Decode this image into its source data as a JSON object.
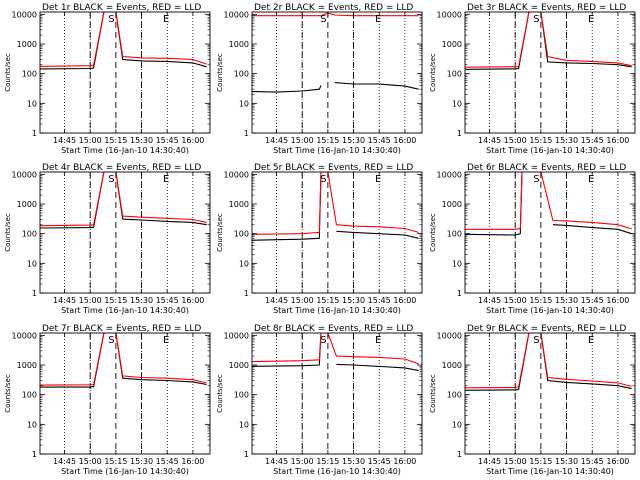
{
  "colors": {
    "events": "#000000",
    "lld": "#ff0000",
    "axes": "#000000"
  },
  "shared_axes": {
    "ylabel": "Counts/sec",
    "xlabel": "Start Time (16-Jan-10 14:30:40)",
    "x_tick_labels": [
      "14:45",
      "15:00",
      "15:15",
      "15:30",
      "15:45",
      "16:00"
    ],
    "y_tick_labels": [
      "1",
      "10",
      "100",
      "1000",
      "10000"
    ],
    "y_scale": "log",
    "xlim": [
      "14:30:40",
      "16:10:00"
    ],
    "ylim": [
      1,
      12000
    ],
    "dotted_lines_at": [
      "14:45",
      "15:00",
      "15:30",
      "15:45",
      "16:00"
    ],
    "dashed_lines_at": [
      "15:00",
      "15:15",
      "15:30"
    ],
    "markers": [
      {
        "label": "S",
        "at": "15:13"
      },
      {
        "label": "E",
        "at": "15:45"
      }
    ]
  },
  "chart_data": [
    {
      "type": "line",
      "title": "Det 1r BLACK = Events, RED = LLD",
      "x": [
        "14:30",
        "15:00",
        "15:02",
        "15:08",
        "15:15",
        "15:19",
        "15:30",
        "15:45",
        "16:00",
        "16:08"
      ],
      "series": [
        {
          "name": "BLACK = Events",
          "values": [
            145,
            150,
            155,
            12000,
            12000,
            300,
            270,
            260,
            230,
            170
          ]
        },
        {
          "name": "RED = LLD",
          "values": [
            175,
            185,
            195,
            12000,
            12000,
            380,
            340,
            330,
            300,
            210
          ]
        }
      ]
    },
    {
      "type": "line",
      "title": "Det 2r BLACK = Events, RED = LLD",
      "x": [
        "14:30",
        "14:45",
        "15:00",
        "15:10",
        "15:11",
        "15:15",
        "15:19",
        "15:30",
        "15:45",
        "16:00",
        "16:08"
      ],
      "series": [
        {
          "name": "BLACK = Events",
          "values": [
            25,
            24,
            26,
            30,
            40,
            null,
            50,
            45,
            45,
            38,
            30
          ]
        },
        {
          "name": "RED = LLD",
          "values": [
            9000,
            9000,
            9000,
            9000,
            9000,
            11000,
            9500,
            9000,
            9000,
            9000,
            9000
          ]
        }
      ]
    },
    {
      "type": "line",
      "title": "Det 3r BLACK = Events, RED = LLD",
      "x": [
        "14:30",
        "15:00",
        "15:02",
        "15:08",
        "15:15",
        "15:19",
        "15:30",
        "15:45",
        "16:00",
        "16:08"
      ],
      "series": [
        {
          "name": "BLACK = Events",
          "values": [
            140,
            145,
            150,
            12000,
            12000,
            250,
            230,
            220,
            200,
            170
          ]
        },
        {
          "name": "RED = LLD",
          "values": [
            165,
            170,
            175,
            12000,
            12000,
            380,
            280,
            260,
            230,
            185
          ]
        }
      ]
    },
    {
      "type": "line",
      "title": "Det 4r BLACK = Events, RED = LLD",
      "x": [
        "14:30",
        "15:00",
        "15:02",
        "15:08",
        "15:15",
        "15:19",
        "15:30",
        "15:45",
        "16:00",
        "16:08"
      ],
      "series": [
        {
          "name": "BLACK = Events",
          "values": [
            155,
            160,
            165,
            12000,
            12000,
            310,
            290,
            260,
            240,
            200
          ]
        },
        {
          "name": "RED = LLD",
          "values": [
            185,
            195,
            200,
            12000,
            12000,
            390,
            360,
            330,
            300,
            240
          ]
        }
      ]
    },
    {
      "type": "line",
      "title": "Det 5r BLACK = Events, RED = LLD",
      "x": [
        "14:30",
        "15:00",
        "15:10",
        "15:11",
        "15:15",
        "15:20",
        "15:30",
        "15:45",
        "16:00",
        "16:08"
      ],
      "series": [
        {
          "name": "BLACK = Events",
          "values": [
            60,
            65,
            70,
            12000,
            null,
            120,
            110,
            100,
            90,
            70
          ]
        },
        {
          "name": "RED = LLD",
          "values": [
            95,
            100,
            110,
            12000,
            12000,
            200,
            180,
            170,
            150,
            110
          ]
        }
      ]
    },
    {
      "type": "line",
      "title": "Det 6r BLACK = Events, RED = LLD",
      "x": [
        "14:30",
        "15:00",
        "15:03",
        "15:04",
        "15:15",
        "15:22",
        "15:30",
        "15:45",
        "16:00",
        "16:08"
      ],
      "series": [
        {
          "name": "BLACK = Events",
          "values": [
            95,
            90,
            100,
            12000,
            null,
            200,
            190,
            160,
            140,
            100
          ]
        },
        {
          "name": "RED = LLD",
          "values": [
            140,
            140,
            150,
            12000,
            12000,
            280,
            270,
            240,
            200,
            145
          ]
        }
      ]
    },
    {
      "type": "line",
      "title": "Det 7r BLACK = Events, RED = LLD",
      "x": [
        "14:30",
        "15:00",
        "15:02",
        "15:08",
        "15:15",
        "15:19",
        "15:30",
        "15:45",
        "16:00",
        "16:08"
      ],
      "series": [
        {
          "name": "BLACK = Events",
          "values": [
            180,
            180,
            185,
            12000,
            12000,
            360,
            320,
            300,
            270,
            220
          ]
        },
        {
          "name": "RED = LLD",
          "values": [
            210,
            215,
            220,
            12000,
            12000,
            430,
            380,
            360,
            320,
            250
          ]
        }
      ]
    },
    {
      "type": "line",
      "title": "Det 8r BLACK = Events, RED = LLD",
      "x": [
        "14:30",
        "15:00",
        "15:10",
        "15:11",
        "15:15",
        "15:20",
        "15:30",
        "15:45",
        "16:00",
        "16:08"
      ],
      "series": [
        {
          "name": "BLACK = Events",
          "values": [
            900,
            950,
            1000,
            12000,
            null,
            1050,
            1000,
            900,
            800,
            650
          ]
        },
        {
          "name": "RED = LLD",
          "values": [
            1300,
            1400,
            1500,
            12000,
            12000,
            2000,
            1900,
            1800,
            1600,
            1100
          ]
        }
      ]
    },
    {
      "type": "line",
      "title": "Det 9r BLACK = Events, RED = LLD",
      "x": [
        "14:30",
        "15:00",
        "15:02",
        "15:08",
        "15:15",
        "15:19",
        "15:30",
        "15:45",
        "16:00",
        "16:08"
      ],
      "series": [
        {
          "name": "BLACK = Events",
          "values": [
            140,
            145,
            150,
            12000,
            12000,
            300,
            260,
            230,
            200,
            160
          ]
        },
        {
          "name": "RED = LLD",
          "values": [
            170,
            175,
            185,
            12000,
            12000,
            380,
            330,
            290,
            250,
            190
          ]
        }
      ]
    }
  ]
}
